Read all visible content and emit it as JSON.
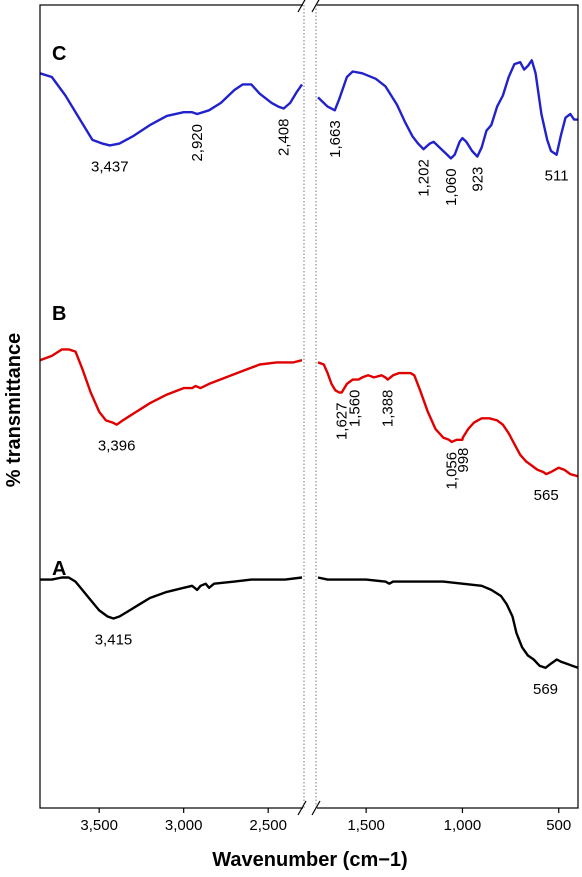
{
  "chart_data": {
    "type": "line",
    "xlabel": "Wavenumber (cm−1)",
    "ylabel": "% transmittance",
    "x_axis": {
      "reversed": true,
      "break_between": [
        2300,
        1750
      ],
      "segment_left": [
        3850,
        2300
      ],
      "segment_right": [
        1750,
        400
      ],
      "ticks": [
        {
          "value": 3500,
          "label": "3,500"
        },
        {
          "value": 3000,
          "label": "3,000"
        },
        {
          "value": 2500,
          "label": "2,500"
        },
        {
          "value": 1500,
          "label": "1,500"
        },
        {
          "value": 1000,
          "label": "1,000"
        },
        {
          "value": 500,
          "label": "500"
        }
      ]
    },
    "y_axis": {
      "ticks": false
    },
    "grid": false,
    "series": [
      {
        "name": "C",
        "color": "#2222cc",
        "points": [
          [
            3850,
            82
          ],
          [
            3780,
            80
          ],
          [
            3700,
            70
          ],
          [
            3620,
            58
          ],
          [
            3540,
            46
          ],
          [
            3480,
            44
          ],
          [
            3437,
            43
          ],
          [
            3380,
            44
          ],
          [
            3300,
            48
          ],
          [
            3200,
            54
          ],
          [
            3100,
            59
          ],
          [
            3000,
            61
          ],
          [
            2950,
            61
          ],
          [
            2920,
            60
          ],
          [
            2850,
            62
          ],
          [
            2780,
            66
          ],
          [
            2700,
            73
          ],
          [
            2650,
            76
          ],
          [
            2600,
            76
          ],
          [
            2550,
            71
          ],
          [
            2480,
            66
          ],
          [
            2440,
            64
          ],
          [
            2408,
            63
          ],
          [
            2370,
            66
          ],
          [
            2330,
            72
          ],
          [
            2300,
            76
          ],
          [
            1750,
            69
          ],
          [
            1700,
            64
          ],
          [
            1663,
            62
          ],
          [
            1640,
            68
          ],
          [
            1600,
            80
          ],
          [
            1570,
            83
          ],
          [
            1520,
            82
          ],
          [
            1450,
            79
          ],
          [
            1400,
            75
          ],
          [
            1340,
            65
          ],
          [
            1300,
            56
          ],
          [
            1260,
            48
          ],
          [
            1230,
            44
          ],
          [
            1202,
            41
          ],
          [
            1170,
            44
          ],
          [
            1150,
            45
          ],
          [
            1120,
            42
          ],
          [
            1090,
            39
          ],
          [
            1060,
            36
          ],
          [
            1040,
            38
          ],
          [
            1015,
            45
          ],
          [
            1000,
            47
          ],
          [
            980,
            45
          ],
          [
            950,
            40
          ],
          [
            923,
            37
          ],
          [
            900,
            42
          ],
          [
            875,
            51
          ],
          [
            850,
            54
          ],
          [
            820,
            64
          ],
          [
            790,
            70
          ],
          [
            760,
            80
          ],
          [
            730,
            87
          ],
          [
            700,
            88
          ],
          [
            680,
            84
          ],
          [
            660,
            86
          ],
          [
            640,
            89
          ],
          [
            620,
            82
          ],
          [
            590,
            60
          ],
          [
            560,
            46
          ],
          [
            540,
            40
          ],
          [
            511,
            38
          ],
          [
            490,
            48
          ],
          [
            465,
            58
          ],
          [
            440,
            60
          ],
          [
            420,
            57
          ],
          [
            400,
            57
          ]
        ],
        "labels": [
          {
            "x": 3437,
            "text": "3,437",
            "rotated": false
          },
          {
            "x": 2920,
            "text": "2,920",
            "rotated": true
          },
          {
            "x": 2408,
            "text": "2,408",
            "rotated": true
          },
          {
            "x": 1663,
            "text": "1,663",
            "rotated": true
          },
          {
            "x": 1202,
            "text": "1,202",
            "rotated": true
          },
          {
            "x": 1060,
            "text": "1,060",
            "rotated": true
          },
          {
            "x": 923,
            "text": "923",
            "rotated": true
          },
          {
            "x": 511,
            "text": "511",
            "rotated": false
          }
        ]
      },
      {
        "name": "B",
        "color": "#e00000",
        "points": [
          [
            3850,
            72
          ],
          [
            3780,
            74
          ],
          [
            3720,
            77
          ],
          [
            3680,
            77
          ],
          [
            3640,
            76
          ],
          [
            3600,
            68
          ],
          [
            3550,
            57
          ],
          [
            3500,
            48
          ],
          [
            3460,
            44
          ],
          [
            3420,
            43
          ],
          [
            3396,
            42
          ],
          [
            3360,
            44
          ],
          [
            3300,
            47
          ],
          [
            3200,
            52
          ],
          [
            3100,
            56
          ],
          [
            3000,
            59
          ],
          [
            2950,
            59
          ],
          [
            2930,
            60
          ],
          [
            2900,
            59
          ],
          [
            2850,
            61
          ],
          [
            2750,
            64
          ],
          [
            2650,
            67
          ],
          [
            2550,
            70
          ],
          [
            2450,
            71
          ],
          [
            2350,
            71
          ],
          [
            2300,
            72
          ],
          [
            1750,
            71
          ],
          [
            1720,
            70
          ],
          [
            1700,
            66
          ],
          [
            1680,
            61
          ],
          [
            1660,
            58
          ],
          [
            1640,
            57
          ],
          [
            1627,
            57
          ],
          [
            1600,
            61
          ],
          [
            1570,
            63
          ],
          [
            1540,
            63
          ],
          [
            1520,
            64
          ],
          [
            1490,
            65
          ],
          [
            1460,
            64
          ],
          [
            1420,
            65
          ],
          [
            1400,
            64
          ],
          [
            1388,
            63
          ],
          [
            1360,
            65
          ],
          [
            1330,
            66
          ],
          [
            1300,
            66
          ],
          [
            1270,
            66
          ],
          [
            1250,
            65
          ],
          [
            1220,
            58
          ],
          [
            1180,
            48
          ],
          [
            1140,
            40
          ],
          [
            1100,
            36
          ],
          [
            1070,
            35
          ],
          [
            1056,
            34
          ],
          [
            1030,
            35
          ],
          [
            1000,
            35
          ],
          [
            998,
            36
          ],
          [
            970,
            40
          ],
          [
            940,
            43
          ],
          [
            900,
            45
          ],
          [
            860,
            45
          ],
          [
            820,
            44
          ],
          [
            790,
            42
          ],
          [
            760,
            38
          ],
          [
            730,
            33
          ],
          [
            700,
            28
          ],
          [
            670,
            25
          ],
          [
            640,
            23
          ],
          [
            610,
            21
          ],
          [
            580,
            20
          ],
          [
            565,
            19
          ],
          [
            540,
            20
          ],
          [
            500,
            22
          ],
          [
            470,
            21
          ],
          [
            440,
            19
          ],
          [
            400,
            18
          ]
        ],
        "labels": [
          {
            "x": 3396,
            "text": "3,396",
            "rotated": false
          },
          {
            "x": 1627,
            "text": "1,627",
            "rotated": true
          },
          {
            "x": 1560,
            "text": "1,560",
            "rotated": true
          },
          {
            "x": 1388,
            "text": "1,388",
            "rotated": true
          },
          {
            "x": 1056,
            "text": "1,056",
            "rotated": true
          },
          {
            "x": 998,
            "text": "998",
            "rotated": true
          },
          {
            "x": 565,
            "text": "565",
            "rotated": false
          }
        ]
      },
      {
        "name": "A",
        "color": "#000000",
        "points": [
          [
            3850,
            88
          ],
          [
            3780,
            88
          ],
          [
            3720,
            89
          ],
          [
            3680,
            89
          ],
          [
            3640,
            87
          ],
          [
            3600,
            83
          ],
          [
            3550,
            78
          ],
          [
            3500,
            73
          ],
          [
            3450,
            70
          ],
          [
            3415,
            69
          ],
          [
            3380,
            70
          ],
          [
            3320,
            73
          ],
          [
            3260,
            76
          ],
          [
            3200,
            79
          ],
          [
            3100,
            82
          ],
          [
            3000,
            84
          ],
          [
            2950,
            85
          ],
          [
            2920,
            83
          ],
          [
            2900,
            85
          ],
          [
            2870,
            86
          ],
          [
            2850,
            84
          ],
          [
            2820,
            86
          ],
          [
            2700,
            87
          ],
          [
            2600,
            88
          ],
          [
            2500,
            88
          ],
          [
            2400,
            88
          ],
          [
            2300,
            89
          ],
          [
            1750,
            89
          ],
          [
            1700,
            88
          ],
          [
            1600,
            88
          ],
          [
            1500,
            88
          ],
          [
            1400,
            87
          ],
          [
            1380,
            86
          ],
          [
            1360,
            87
          ],
          [
            1300,
            87
          ],
          [
            1200,
            87
          ],
          [
            1100,
            87
          ],
          [
            1000,
            86
          ],
          [
            900,
            85
          ],
          [
            850,
            83
          ],
          [
            800,
            80
          ],
          [
            770,
            76
          ],
          [
            740,
            70
          ],
          [
            720,
            62
          ],
          [
            690,
            55
          ],
          [
            660,
            51
          ],
          [
            630,
            49
          ],
          [
            600,
            46
          ],
          [
            570,
            45
          ],
          [
            569,
            45
          ],
          [
            540,
            47
          ],
          [
            510,
            49
          ],
          [
            490,
            48
          ],
          [
            460,
            47
          ],
          [
            430,
            46
          ],
          [
            400,
            45
          ]
        ],
        "labels": [
          {
            "x": 3415,
            "text": "3,415",
            "rotated": false
          },
          {
            "x": 569,
            "text": "569",
            "rotated": false
          }
        ]
      }
    ]
  }
}
